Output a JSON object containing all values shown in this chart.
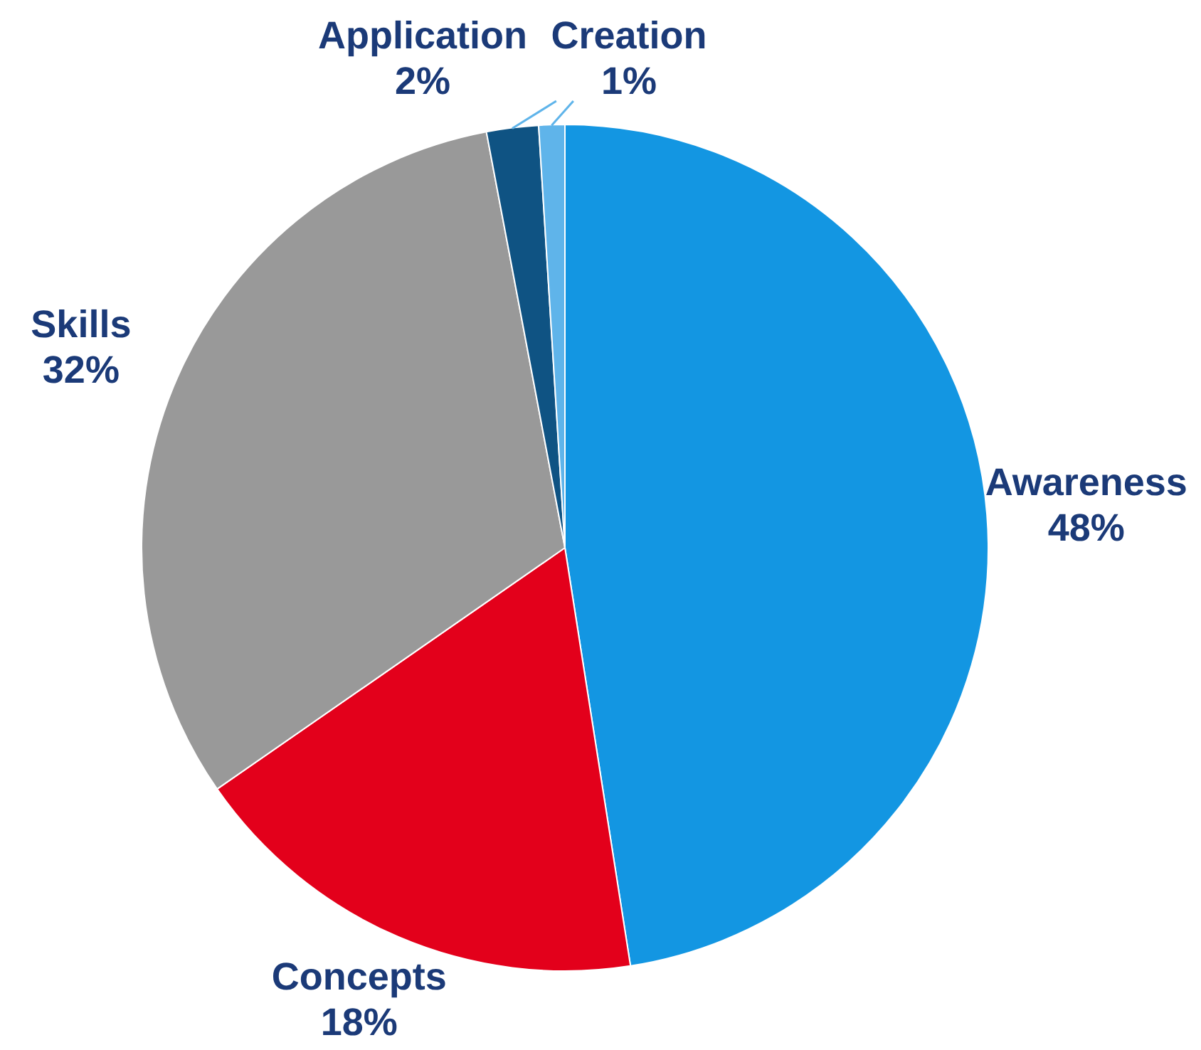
{
  "chart_data": {
    "type": "pie",
    "categories": [
      "Awareness",
      "Concepts",
      "Skills",
      "Application",
      "Creation"
    ],
    "values": [
      48,
      18,
      32,
      2,
      1
    ],
    "colors": [
      "#1396e2",
      "#e3001b",
      "#999999",
      "#0f5383",
      "#5fb4ea"
    ],
    "value_labels": [
      "48%",
      "18%",
      "32%",
      "2%",
      "1%"
    ],
    "legend": false
  }
}
